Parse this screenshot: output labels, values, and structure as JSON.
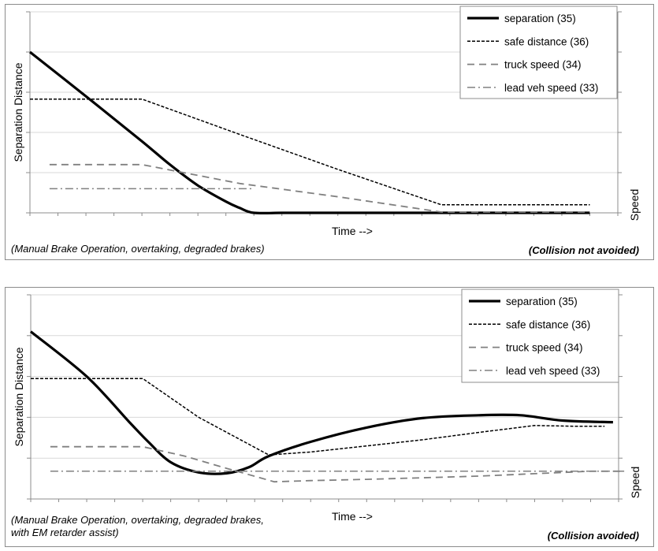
{
  "chart_data": [
    {
      "type": "line",
      "ylabel": "Separation Distance",
      "y2label": "Speed",
      "xlabel": "Time -->",
      "caption": [
        "(Manual Brake Operation, overtaking, degraded brakes)"
      ],
      "result": "(Collision not avoided)",
      "grid": "horizontal",
      "legend_position": "top-right",
      "xlim": [
        0,
        21
      ],
      "ylim": [
        0,
        5
      ],
      "series": [
        {
          "name": "separation (35)",
          "style": "solid-thick",
          "color": "#000000",
          "x": [
            0,
            2,
            4,
            5,
            6,
            7,
            7.5,
            8,
            9,
            10,
            12,
            14,
            16,
            18,
            20
          ],
          "values": [
            4.0,
            2.9,
            1.78,
            1.2,
            0.68,
            0.28,
            0.12,
            0.0,
            0.0,
            0.0,
            0.0,
            0.0,
            0.0,
            0.0,
            0.0
          ]
        },
        {
          "name": "safe distance (36)",
          "style": "dashed",
          "color": "#000000",
          "x": [
            0,
            4,
            7.5,
            11,
            14.7,
            20
          ],
          "values": [
            2.83,
            2.83,
            1.95,
            1.08,
            0.2,
            0.2
          ]
        },
        {
          "name": "truck speed (34)",
          "style": "dashed-long",
          "color": "#808080",
          "x": [
            0.7,
            4,
            7.5,
            11,
            14.7,
            20
          ],
          "values": [
            1.2,
            1.2,
            0.73,
            0.4,
            0.02,
            0.02
          ]
        },
        {
          "name": "lead veh speed (33)",
          "style": "dash-dot",
          "color": "#808080",
          "x": [
            0.7,
            8
          ],
          "values": [
            0.6,
            0.6
          ]
        }
      ]
    },
    {
      "type": "line",
      "ylabel": "Separation Distance",
      "y2label": "Speed",
      "xlabel": "Time -->",
      "caption": [
        "(Manual Brake Operation, overtaking, degraded brakes,",
        "with EM retarder assist)"
      ],
      "result": "(Collision avoided)",
      "grid": "horizontal",
      "legend_position": "top-right",
      "xlim": [
        0,
        21
      ],
      "ylim": [
        0,
        5
      ],
      "series": [
        {
          "name": "separation (35)",
          "style": "solid-thick",
          "color": "#000000",
          "x": [
            0,
            2,
            3.5,
            4.2,
            5,
            6,
            7,
            7.8,
            8.5,
            10,
            12,
            14,
            16,
            17.5,
            19,
            20.8
          ],
          "values": [
            4.1,
            3.0,
            1.9,
            1.4,
            0.9,
            0.65,
            0.63,
            0.78,
            1.05,
            1.4,
            1.75,
            1.98,
            2.05,
            2.05,
            1.92,
            1.88
          ]
        },
        {
          "name": "safe distance (36)",
          "style": "dashed",
          "color": "#000000",
          "x": [
            0,
            4,
            6,
            8.5,
            10,
            12,
            14,
            16,
            18,
            19.5,
            20.5
          ],
          "values": [
            2.95,
            2.95,
            2.0,
            1.08,
            1.15,
            1.3,
            1.45,
            1.63,
            1.8,
            1.78,
            1.78
          ]
        },
        {
          "name": "truck speed (34)",
          "style": "dashed-long",
          "color": "#808080",
          "x": [
            0.7,
            4,
            5.5,
            7,
            8.7,
            10,
            12,
            14,
            16,
            18,
            20,
            21.2
          ],
          "values": [
            1.28,
            1.28,
            1.05,
            0.75,
            0.42,
            0.45,
            0.48,
            0.52,
            0.56,
            0.62,
            0.68,
            0.68
          ]
        },
        {
          "name": "lead veh speed (33)",
          "style": "dash-dot",
          "color": "#808080",
          "x": [
            0.7,
            21.2
          ],
          "values": [
            0.68,
            0.68
          ]
        }
      ]
    }
  ]
}
